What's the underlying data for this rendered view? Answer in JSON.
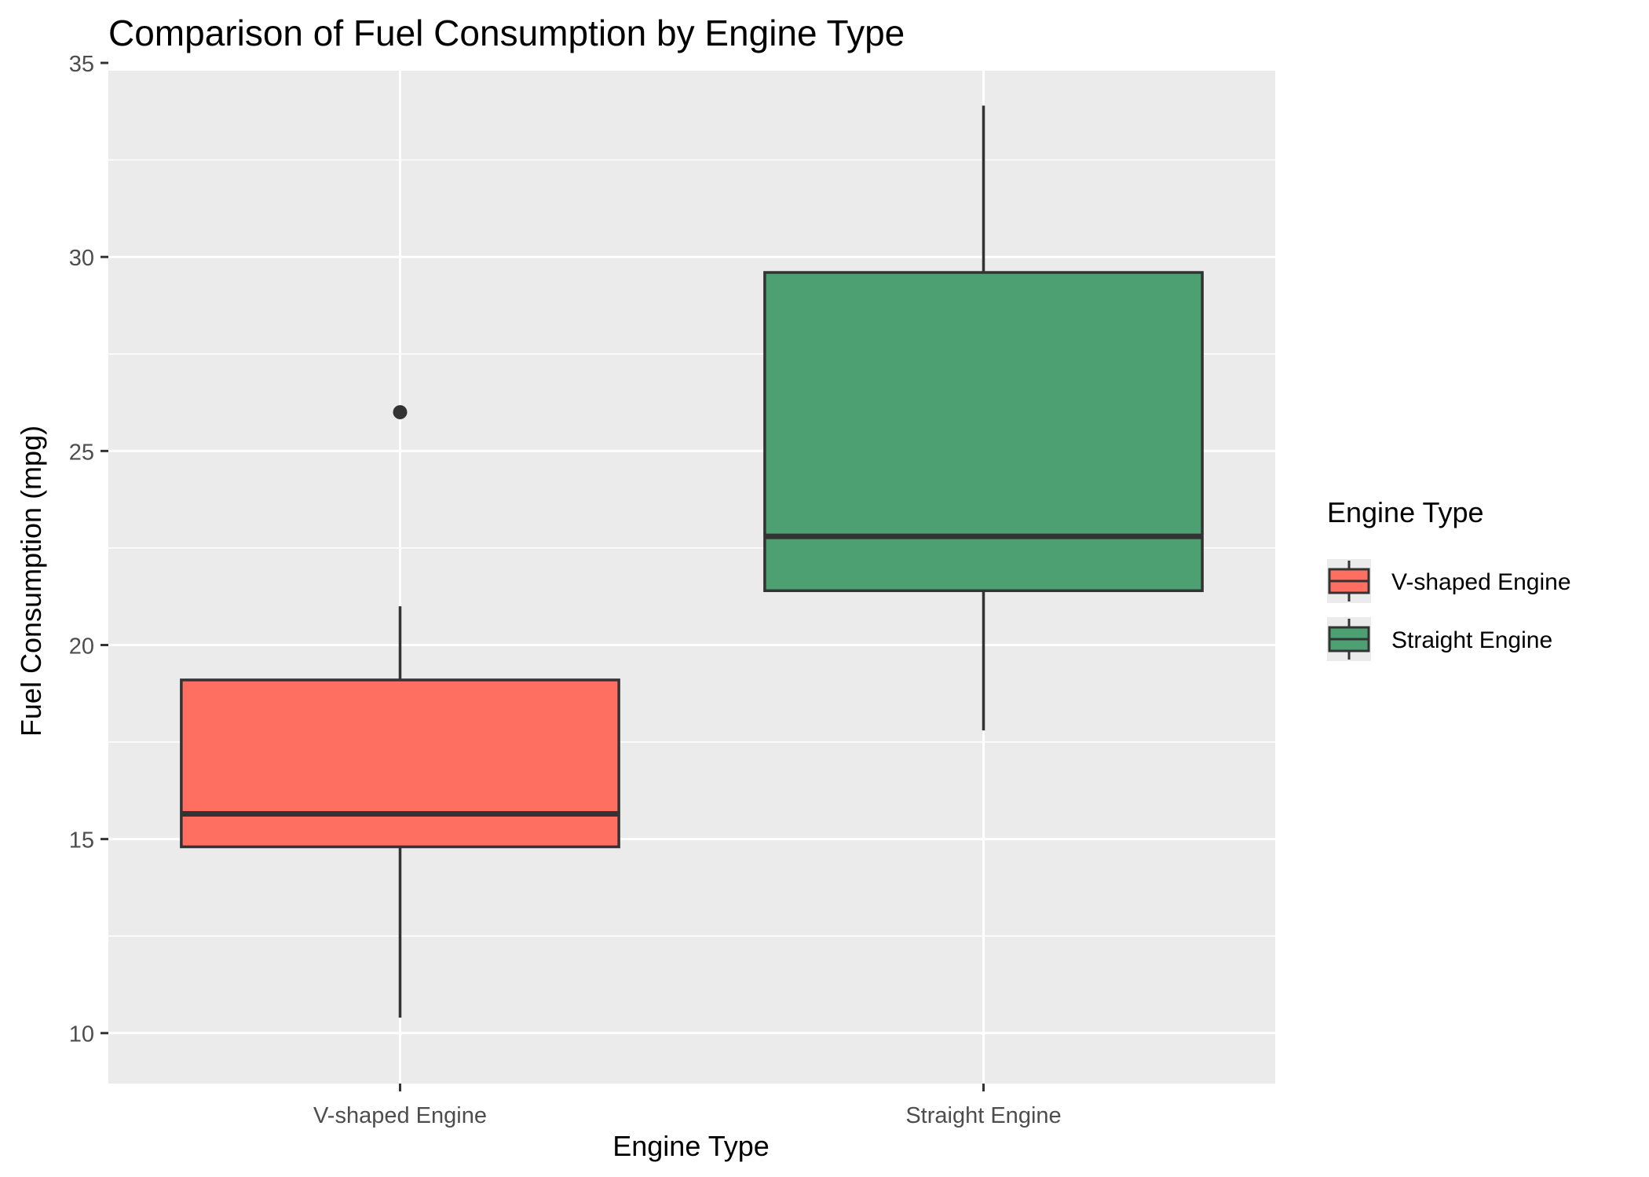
{
  "chart_data": {
    "type": "boxplot",
    "title": "Comparison of Fuel Consumption by Engine Type",
    "xlabel": "Engine Type",
    "ylabel": "Fuel Consumption (mpg)",
    "ylim": [
      8.7,
      34.8
    ],
    "yticks": [
      10,
      15,
      20,
      25,
      30,
      35
    ],
    "grid": true,
    "categories": [
      "V-shaped Engine",
      "Straight Engine"
    ],
    "boxes": [
      {
        "category": "V-shaped Engine",
        "min": 10.4,
        "q1": 14.8,
        "median": 15.65,
        "q3": 19.1,
        "max": 21.0,
        "outliers": [
          26.0
        ],
        "color": "#FF6F61"
      },
      {
        "category": "Straight Engine",
        "min": 17.8,
        "q1": 21.4,
        "median": 22.8,
        "q3": 29.6,
        "max": 33.9,
        "outliers": [],
        "color": "#4CA071"
      }
    ],
    "legend": {
      "title": "Engine Type",
      "position": "right",
      "items": [
        {
          "label": "V-shaped Engine",
          "color": "#FF6F61"
        },
        {
          "label": "Straight Engine",
          "color": "#4CA071"
        }
      ]
    },
    "colors": {
      "panel_bg": "#EBEBEB",
      "grid": "#FFFFFF",
      "outline": "#333333",
      "tick_text": "#4D4D4D"
    }
  }
}
